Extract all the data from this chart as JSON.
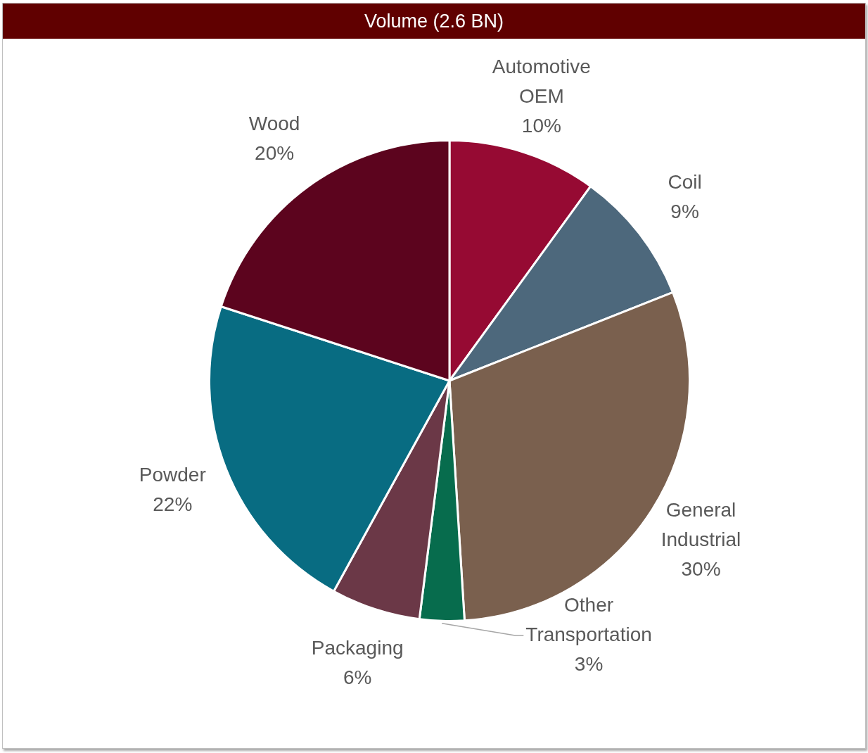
{
  "chart_data": {
    "type": "pie",
    "title": "Volume (2.6 BN)",
    "categories": [
      "Automotive OEM",
      "Coil",
      "General Industrial",
      "Other Transportation",
      "Packaging",
      "Powder",
      "Wood"
    ],
    "values": [
      10,
      9,
      30,
      3,
      6,
      22,
      20
    ],
    "colors": [
      "#960a33",
      "#4d687c",
      "#7a604e",
      "#076c4d",
      "#6b3847",
      "#086c82",
      "#5c041e"
    ],
    "value_labels": [
      "10%",
      "9%",
      "30%",
      "3%",
      "6%",
      "22%",
      "20%"
    ],
    "legend": false
  }
}
